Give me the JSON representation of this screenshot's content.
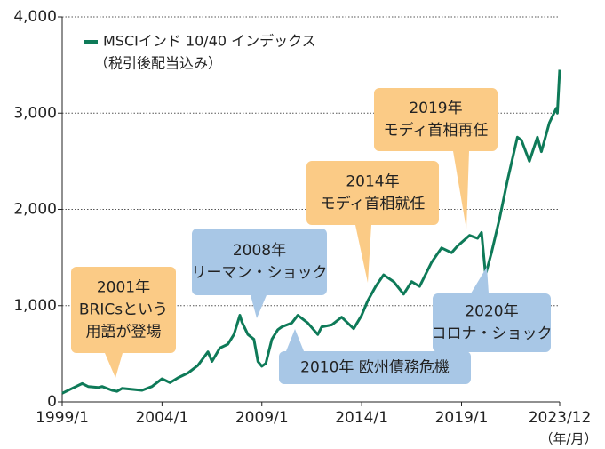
{
  "chart_data": {
    "type": "line",
    "legend_note": "（税引後配当込み）",
    "x_unit": "（年/月）",
    "x": [
      1999.0,
      1999.5,
      2000.0,
      2000.3,
      2000.8,
      2001.0,
      2001.5,
      2001.75,
      2002.0,
      2002.5,
      2003.0,
      2003.5,
      2004.0,
      2004.4,
      2004.8,
      2005.3,
      2005.8,
      2006.3,
      2006.5,
      2006.9,
      2007.3,
      2007.6,
      2007.9,
      2008.0,
      2008.3,
      2008.6,
      2008.8,
      2009.0,
      2009.2,
      2009.5,
      2009.8,
      2010.0,
      2010.5,
      2010.8,
      2011.3,
      2011.8,
      2012.0,
      2012.5,
      2013.0,
      2013.6,
      2014.0,
      2014.3,
      2014.7,
      2015.1,
      2015.6,
      2016.1,
      2016.5,
      2016.9,
      2017.5,
      2018.0,
      2018.5,
      2018.8,
      2019.4,
      2019.8,
      2020.0,
      2020.2,
      2020.5,
      2020.9,
      2021.3,
      2021.8,
      2022.0,
      2022.4,
      2022.8,
      2023.0,
      2023.4,
      2023.75,
      2023.8,
      2023.917
    ],
    "series": [
      {
        "name": "MSCIインド 10/40 インデックス",
        "color": "#0e7a58",
        "values": [
          90,
          140,
          190,
          160,
          150,
          160,
          120,
          110,
          140,
          130,
          120,
          160,
          240,
          200,
          250,
          300,
          380,
          520,
          420,
          560,
          600,
          700,
          900,
          830,
          700,
          650,
          420,
          370,
          400,
          650,
          750,
          780,
          820,
          900,
          820,
          700,
          780,
          800,
          880,
          760,
          900,
          1050,
          1200,
          1320,
          1250,
          1120,
          1250,
          1200,
          1450,
          1600,
          1550,
          1620,
          1730,
          1700,
          1760,
          1320,
          1550,
          1900,
          2300,
          2750,
          2720,
          2500,
          2750,
          2600,
          2900,
          3050,
          3000,
          3450
        ]
      }
    ],
    "xlim": [
      1999,
      2023.917
    ],
    "xticks": [
      {
        "value": 1999,
        "label": "1999/1"
      },
      {
        "value": 2004,
        "label": "2004/1"
      },
      {
        "value": 2009,
        "label": "2009/1"
      },
      {
        "value": 2014,
        "label": "2014/1"
      },
      {
        "value": 2019,
        "label": "2019/1"
      },
      {
        "value": 2023.917,
        "label": "2023/12"
      }
    ],
    "ylim": [
      0,
      4000
    ],
    "yticks": [
      0,
      {
        "value": 1000,
        "label": "1,000"
      },
      {
        "value": 2000,
        "label": "2,000"
      },
      {
        "value": 3000,
        "label": "3,000"
      },
      {
        "value": 4000,
        "label": "4,000"
      }
    ],
    "grid": true,
    "annotations": [
      {
        "lines": [
          "2001年",
          "BRICsという",
          "用語が登場"
        ],
        "color": "#fbcb86"
      },
      {
        "lines": [
          "2008年",
          "リーマン・ショック"
        ],
        "color": "#a8c7e6"
      },
      {
        "lines": [
          "2014年",
          "モディ首相就任"
        ],
        "color": "#fbcb86"
      },
      {
        "lines": [
          "2019年",
          "モディ首相再任"
        ],
        "color": "#fbcb86"
      },
      {
        "lines": [
          "2020年",
          "コロナ・ショック"
        ],
        "color": "#a8c7e6"
      },
      {
        "lines": [
          "2010年 欧州債務危機"
        ],
        "color": "#a8c7e6"
      }
    ]
  }
}
